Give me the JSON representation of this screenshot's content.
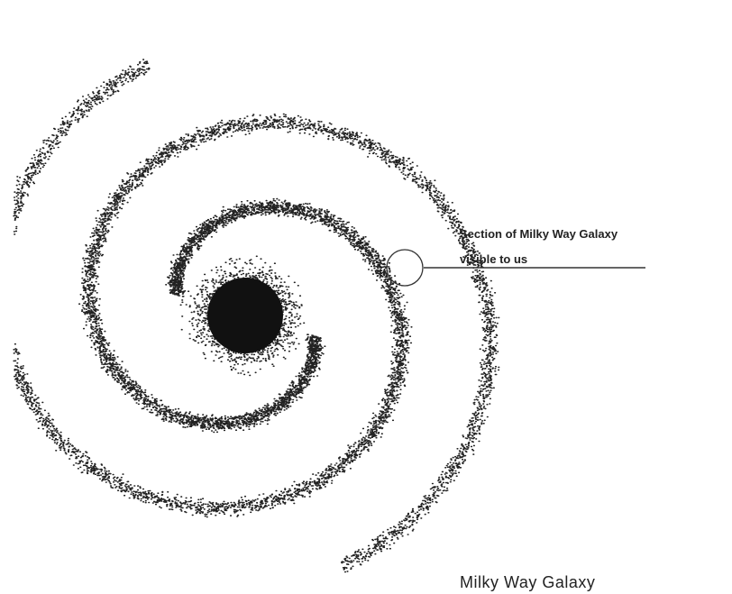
{
  "annotation": {
    "lines": [
      "Section of Milky Way Galaxy",
      "visible to us"
    ]
  },
  "caption": "Milky Way Galaxy"
}
